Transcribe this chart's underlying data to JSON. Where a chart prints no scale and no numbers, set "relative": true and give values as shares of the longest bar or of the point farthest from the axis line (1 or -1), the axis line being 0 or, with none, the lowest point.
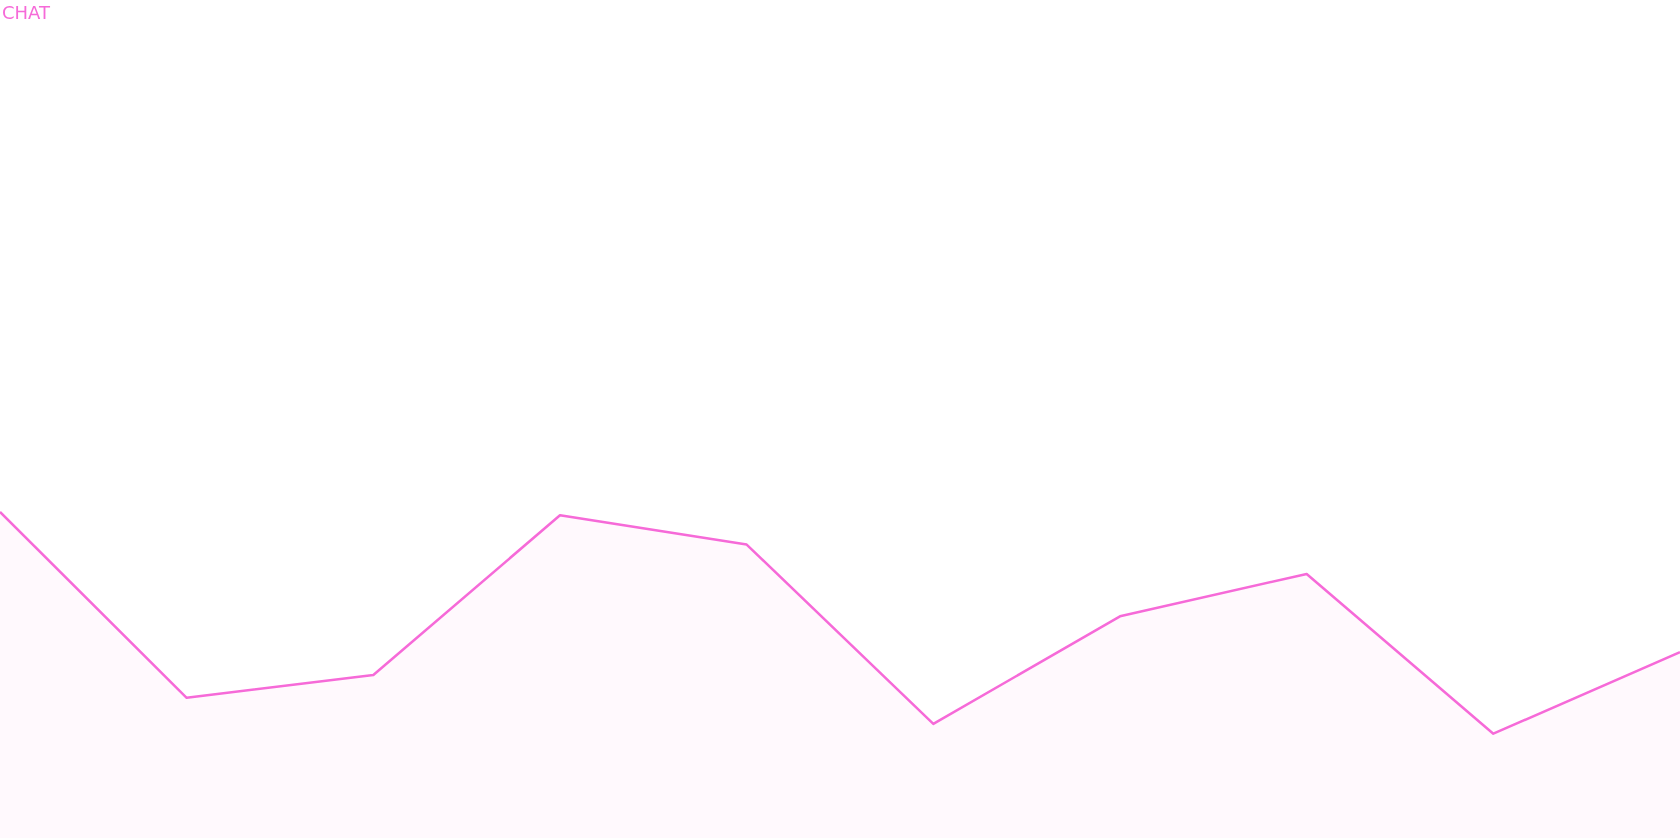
{
  "chart_data": {
    "type": "area",
    "title": "CHAT",
    "relative": true,
    "categories": [
      null,
      null,
      null,
      null,
      null,
      null,
      null,
      null,
      null,
      null
    ],
    "series": [
      {
        "color": "#f66ad8",
        "values": [
          1,
          0.43,
          0.5,
          0.99,
          0.9,
          0.35,
          0.68,
          0.81,
          0.32,
          0.57
        ]
      }
    ],
    "marker": "none",
    "line_style": "solid"
  }
}
